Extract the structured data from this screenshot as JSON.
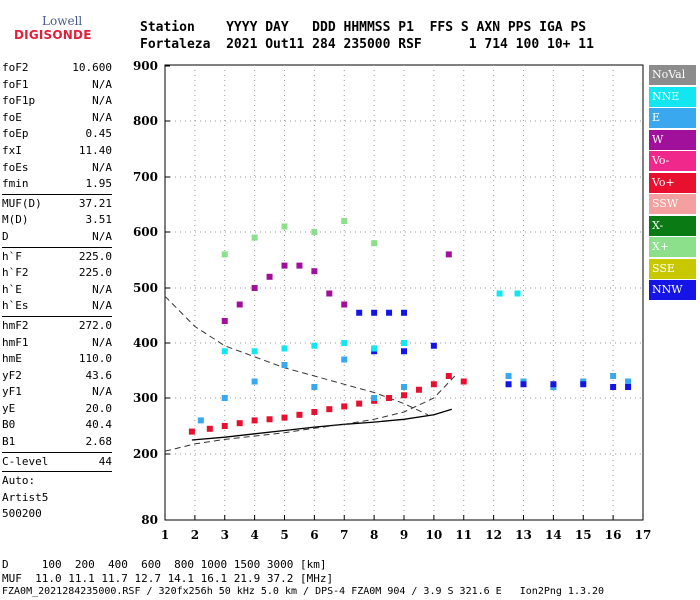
{
  "logo": {
    "line1": "Lowell",
    "line2": "DIGISONDE"
  },
  "header": {
    "line1": "Station    YYYY DAY   DDD HHMMSS P1  FFS S AXN PPS IGA PS",
    "line2": "Fortaleza  2021 Out11 284 235000 RSF      1 714 100 10+ 11"
  },
  "params": [
    [
      {
        "k": "foF2",
        "v": "10.600"
      },
      {
        "k": "foF1",
        "v": "N/A"
      },
      {
        "k": "foF1p",
        "v": "N/A"
      },
      {
        "k": "foE",
        "v": "N/A"
      },
      {
        "k": "foEp",
        "v": "0.45"
      },
      {
        "k": "fxI",
        "v": "11.40"
      },
      {
        "k": "foEs",
        "v": "N/A"
      },
      {
        "k": "fmin",
        "v": "1.95"
      }
    ],
    [
      {
        "k": "MUF(D)",
        "v": "37.21"
      },
      {
        "k": "M(D)",
        "v": "3.51"
      },
      {
        "k": "D",
        "v": "N/A"
      }
    ],
    [
      {
        "k": "h`F",
        "v": "225.0"
      },
      {
        "k": "h`F2",
        "v": "225.0"
      },
      {
        "k": "h`E",
        "v": "N/A"
      },
      {
        "k": "h`Es",
        "v": "N/A"
      }
    ],
    [
      {
        "k": "hmF2",
        "v": "272.0"
      },
      {
        "k": "hmF1",
        "v": "N/A"
      },
      {
        "k": "hmE",
        "v": "110.0"
      },
      {
        "k": "yF2",
        "v": "43.6"
      },
      {
        "k": "yF1",
        "v": "N/A"
      },
      {
        "k": "yE",
        "v": "20.0"
      },
      {
        "k": "B0",
        "v": "40.4"
      },
      {
        "k": "B1",
        "v": "2.68"
      }
    ],
    [
      {
        "k": "C-level",
        "v": "44"
      }
    ],
    [
      {
        "k": "Auto:",
        "v": ""
      },
      {
        "k": "Artist5",
        "v": ""
      },
      {
        "k": "500200",
        "v": ""
      }
    ]
  ],
  "legend": [
    {
      "label": "NoVal",
      "color": "#8c8c8c"
    },
    {
      "label": "NNE",
      "color": "#12e6f0"
    },
    {
      "label": "E",
      "color": "#3aa8ee"
    },
    {
      "label": "W",
      "color": "#a0109a"
    },
    {
      "label": "Vo-",
      "color": "#f0288c"
    },
    {
      "label": "Vo+",
      "color": "#e8102e"
    },
    {
      "label": "SSW",
      "color": "#f4a0a0"
    },
    {
      "label": "X-",
      "color": "#0a7a14"
    },
    {
      "label": "X+",
      "color": "#8ce08c"
    },
    {
      "label": "SSE",
      "color": "#c8c800"
    },
    {
      "label": "NNW",
      "color": "#1414e6"
    }
  ],
  "bottom": {
    "d_line": "D     100  200  400  600  800 1000 1500 3000 [km]",
    "muf_line": "MUF  11.0 11.1 11.7 12.7 14.1 16.1 21.9 37.2 [MHz]",
    "footer": "FZA0M_2021284235000.RSF / 320fx256h 50 kHz 5.0 km / DPS-4 FZA0M 904 / 3.9 S 321.6 E   Ion2Png 1.3.20"
  },
  "chart_data": {
    "type": "scatter",
    "xlabel": "",
    "ylabel": "",
    "xlim": [
      1,
      17
    ],
    "ylim": [
      80,
      900
    ],
    "x_ticks": [
      1,
      2,
      3,
      4,
      5,
      6,
      7,
      8,
      9,
      10,
      11,
      12,
      13,
      14,
      15,
      16,
      17
    ],
    "y_ticks": [
      80,
      200,
      300,
      400,
      500,
      600,
      700,
      800,
      900
    ],
    "grid": "dotted",
    "legend_placement": "right",
    "series": [
      {
        "name": "Vo+",
        "color": "#e8102e",
        "points": [
          [
            1.9,
            240
          ],
          [
            2.5,
            245
          ],
          [
            3,
            250
          ],
          [
            3.5,
            255
          ],
          [
            4,
            260
          ],
          [
            4.5,
            262
          ],
          [
            5,
            265
          ],
          [
            5.5,
            270
          ],
          [
            6,
            275
          ],
          [
            6.5,
            280
          ],
          [
            7,
            285
          ],
          [
            7.5,
            290
          ],
          [
            8,
            295
          ],
          [
            8.5,
            300
          ],
          [
            9,
            305
          ],
          [
            9.5,
            315
          ],
          [
            10,
            325
          ],
          [
            10.5,
            340
          ],
          [
            11,
            330
          ]
        ]
      },
      {
        "name": "E",
        "color": "#3aa8ee",
        "points": [
          [
            2.2,
            260
          ],
          [
            3,
            300
          ],
          [
            4,
            330
          ],
          [
            5,
            360
          ],
          [
            6,
            320
          ],
          [
            7,
            370
          ],
          [
            8,
            300
          ],
          [
            9,
            320
          ],
          [
            12.5,
            340
          ],
          [
            13,
            330
          ],
          [
            14,
            320
          ],
          [
            15,
            330
          ],
          [
            16,
            340
          ],
          [
            16.5,
            330
          ]
        ]
      },
      {
        "name": "NNW",
        "color": "#1414e6",
        "points": [
          [
            7.5,
            455
          ],
          [
            8,
            455
          ],
          [
            8.5,
            455
          ],
          [
            9,
            455
          ],
          [
            8,
            385
          ],
          [
            9,
            385
          ],
          [
            10,
            395
          ],
          [
            12.5,
            325
          ],
          [
            13,
            325
          ],
          [
            14,
            325
          ],
          [
            15,
            325
          ],
          [
            16,
            320
          ],
          [
            16.5,
            320
          ]
        ]
      },
      {
        "name": "W",
        "color": "#a0109a",
        "points": [
          [
            3,
            440
          ],
          [
            3.5,
            470
          ],
          [
            4,
            500
          ],
          [
            4.5,
            520
          ],
          [
            5,
            540
          ],
          [
            5.5,
            540
          ],
          [
            6,
            530
          ],
          [
            6.5,
            490
          ],
          [
            7,
            470
          ],
          [
            10.5,
            560
          ]
        ]
      },
      {
        "name": "NNE",
        "color": "#12e6f0",
        "points": [
          [
            3,
            385
          ],
          [
            4,
            385
          ],
          [
            5,
            390
          ],
          [
            6,
            395
          ],
          [
            7,
            400
          ],
          [
            8,
            390
          ],
          [
            9,
            400
          ],
          [
            12.2,
            490
          ],
          [
            12.8,
            490
          ]
        ]
      },
      {
        "name": "X+",
        "color": "#8ce08c",
        "points": [
          [
            3,
            560
          ],
          [
            4,
            590
          ],
          [
            5,
            610
          ],
          [
            6,
            600
          ],
          [
            7,
            620
          ],
          [
            8,
            580
          ]
        ]
      }
    ],
    "curves": [
      {
        "name": "",
        "style": "solid",
        "points": [
          [
            1.9,
            225
          ],
          [
            3,
            230
          ],
          [
            4,
            236
          ],
          [
            5,
            242
          ],
          [
            6,
            248
          ],
          [
            7,
            253
          ],
          [
            8,
            257
          ],
          [
            9,
            262
          ],
          [
            10,
            270
          ],
          [
            10.6,
            280
          ]
        ]
      },
      {
        "name": "",
        "style": "dashed",
        "points": [
          [
            1,
            485
          ],
          [
            2,
            430
          ],
          [
            3,
            395
          ],
          [
            4,
            375
          ],
          [
            5,
            355
          ],
          [
            6,
            340
          ],
          [
            7,
            325
          ],
          [
            8,
            310
          ],
          [
            9,
            290
          ],
          [
            9.8,
            270
          ]
        ]
      },
      {
        "name": "",
        "style": "dashed",
        "points": [
          [
            1,
            205
          ],
          [
            2,
            218
          ],
          [
            3,
            226
          ],
          [
            4,
            232
          ],
          [
            5,
            238
          ],
          [
            6,
            246
          ],
          [
            7,
            253
          ],
          [
            8,
            262
          ],
          [
            9,
            275
          ],
          [
            10,
            300
          ],
          [
            10.7,
            340
          ]
        ]
      }
    ]
  }
}
